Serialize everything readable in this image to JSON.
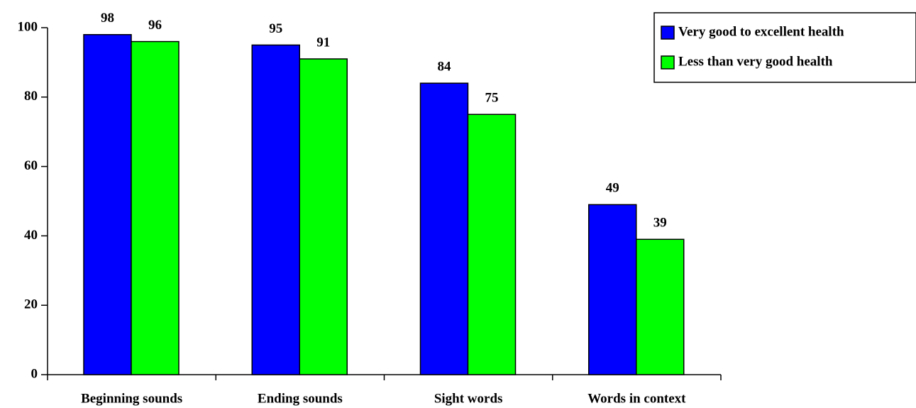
{
  "chart_data": {
    "type": "bar",
    "categories": [
      "Beginning sounds",
      "Ending sounds",
      "Sight words",
      "Words in context"
    ],
    "series": [
      {
        "name": "Very good to excellent health",
        "color": "#0000ff",
        "values": [
          98,
          95,
          84,
          49
        ]
      },
      {
        "name": "Less than very good health",
        "color": "#00ff00",
        "values": [
          96,
          91,
          75,
          39
        ]
      }
    ],
    "ylim": [
      0,
      100
    ],
    "yticks": [
      0,
      20,
      40,
      60,
      80,
      100
    ],
    "grid": false,
    "legend": "upper right"
  }
}
